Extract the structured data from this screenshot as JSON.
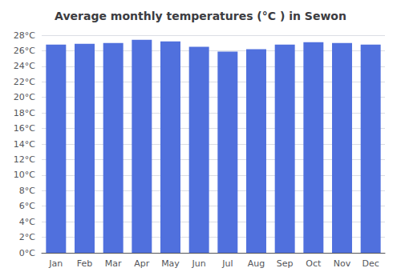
{
  "chart_data": {
    "type": "bar",
    "title": "Average monthly temperatures (°C ) in Sewon",
    "categories": [
      "Jan",
      "Feb",
      "Mar",
      "Apr",
      "May",
      "Jun",
      "Jul",
      "Aug",
      "Sep",
      "Oct",
      "Nov",
      "Dec"
    ],
    "values": [
      26.8,
      26.9,
      27.0,
      27.4,
      27.2,
      26.5,
      25.9,
      26.2,
      26.8,
      27.1,
      27.0,
      26.8
    ],
    "ylim": [
      0,
      28
    ],
    "yticks": [
      {
        "value": 0,
        "label": "0°C"
      },
      {
        "value": 2,
        "label": "2°C"
      },
      {
        "value": 4,
        "label": "4°C"
      },
      {
        "value": 6,
        "label": "6°C"
      },
      {
        "value": 8,
        "label": "8°C"
      },
      {
        "value": 10,
        "label": "10°C"
      },
      {
        "value": 12,
        "label": "12°C"
      },
      {
        "value": 14,
        "label": "14°C"
      },
      {
        "value": 16,
        "label": "16°C"
      },
      {
        "value": 18,
        "label": "18°C"
      },
      {
        "value": 20,
        "label": "20°C"
      },
      {
        "value": 22,
        "label": "22°C"
      },
      {
        "value": 24,
        "label": "24°C"
      },
      {
        "value": 26,
        "label": "26°C"
      },
      {
        "value": 28,
        "label": "28°C"
      }
    ],
    "grid": true
  }
}
